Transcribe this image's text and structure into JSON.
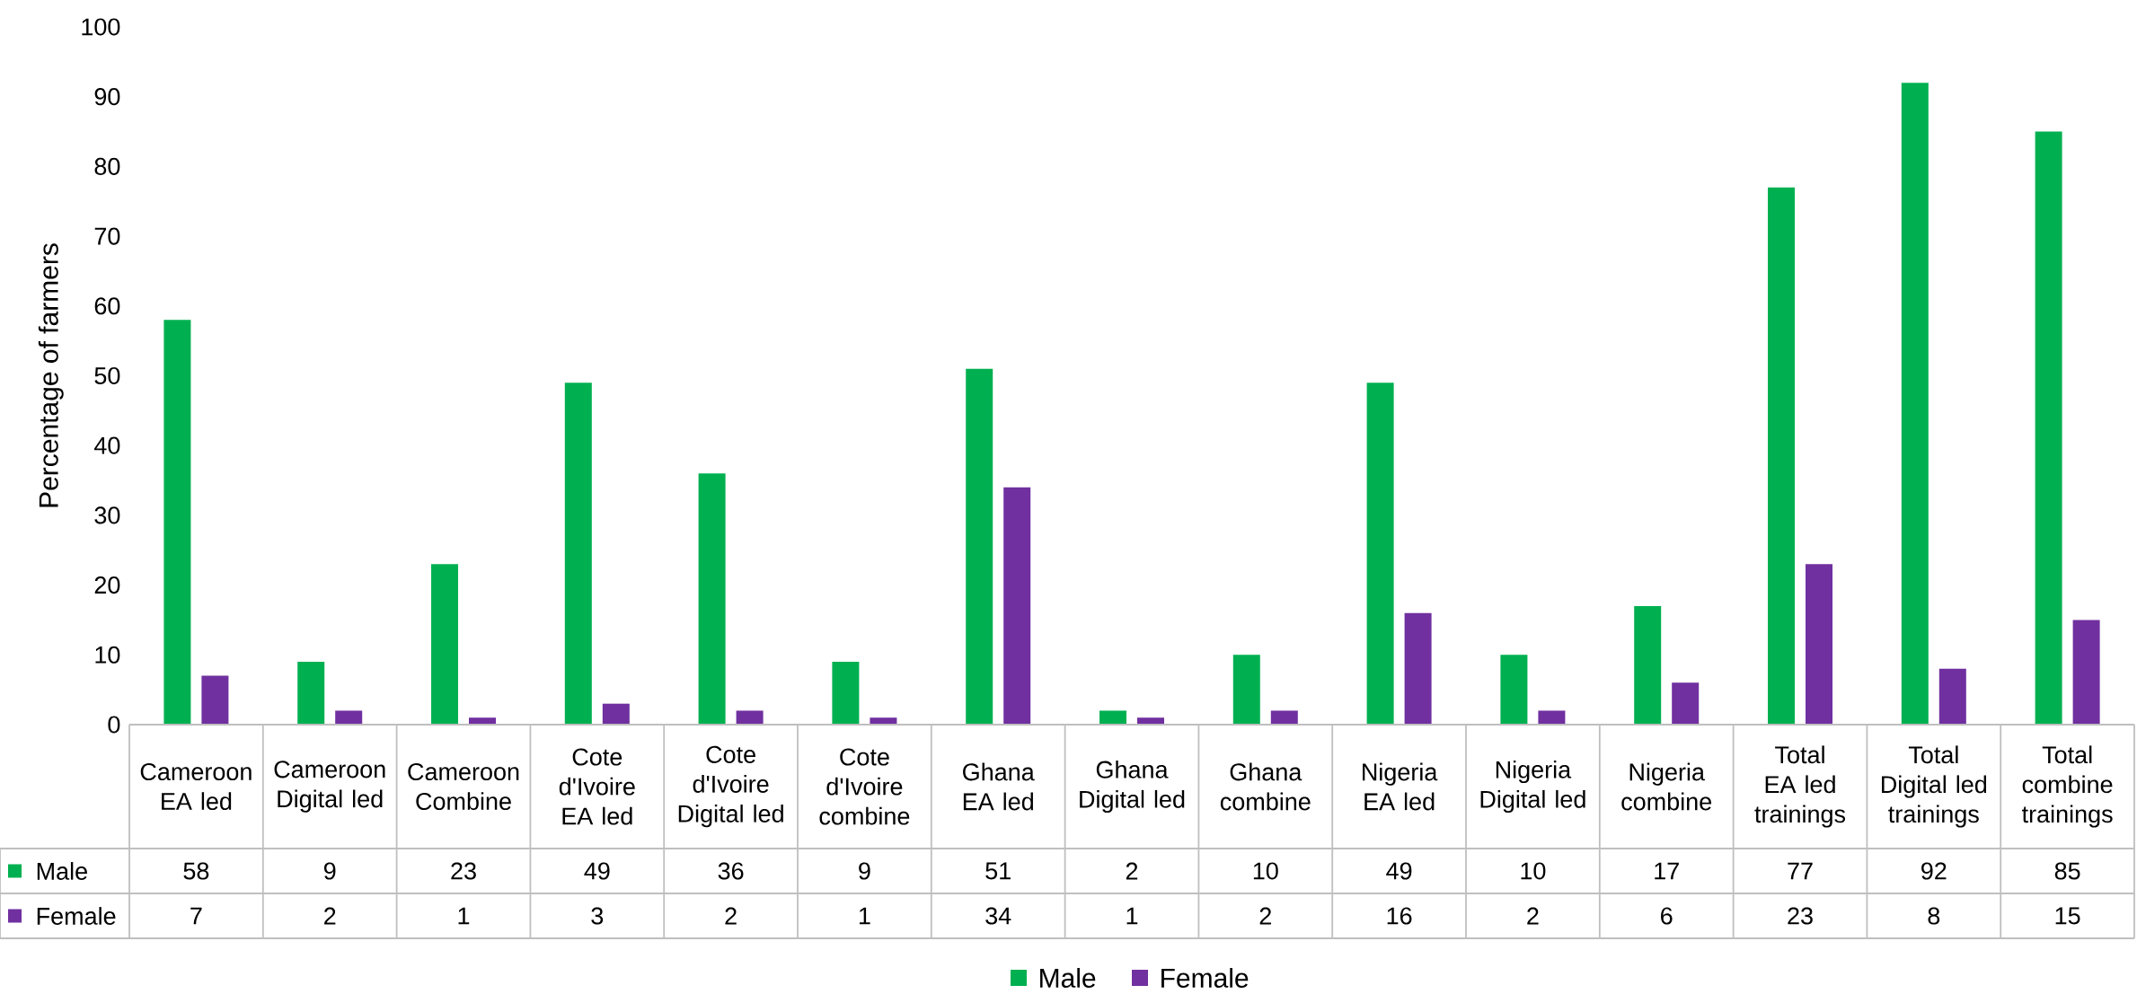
{
  "chart_data": {
    "type": "bar",
    "ylabel": "Percentage of farmers",
    "categories": [
      "Cameroon EA led",
      "Cameroon Digital led",
      "Cameroon Combine",
      "Cote d'Ivoire EA led",
      "Cote d'Ivoire Digital led",
      "Cote d'Ivoire combine",
      "Ghana EA led",
      "Ghana Digital led",
      "Ghana combine",
      "Nigeria EA led",
      "Nigeria Digital led",
      "Nigeria combine",
      "Total EA led trainings",
      "Total Digital led trainings",
      "Total combine trainings"
    ],
    "series": [
      {
        "name": "Male",
        "color": "#00b050",
        "values": [
          58,
          9,
          23,
          49,
          36,
          9,
          51,
          2,
          10,
          49,
          10,
          17,
          77,
          92,
          85
        ]
      },
      {
        "name": "Female",
        "color": "#7030a0",
        "values": [
          7,
          2,
          1,
          3,
          2,
          1,
          34,
          1,
          2,
          16,
          2,
          6,
          23,
          8,
          15
        ]
      }
    ],
    "ylim": [
      0,
      100
    ],
    "yticks": [
      0,
      10,
      20,
      30,
      40,
      50,
      60,
      70,
      80,
      90,
      100
    ],
    "data_labels": true,
    "legend": "bottom",
    "grid": false
  }
}
